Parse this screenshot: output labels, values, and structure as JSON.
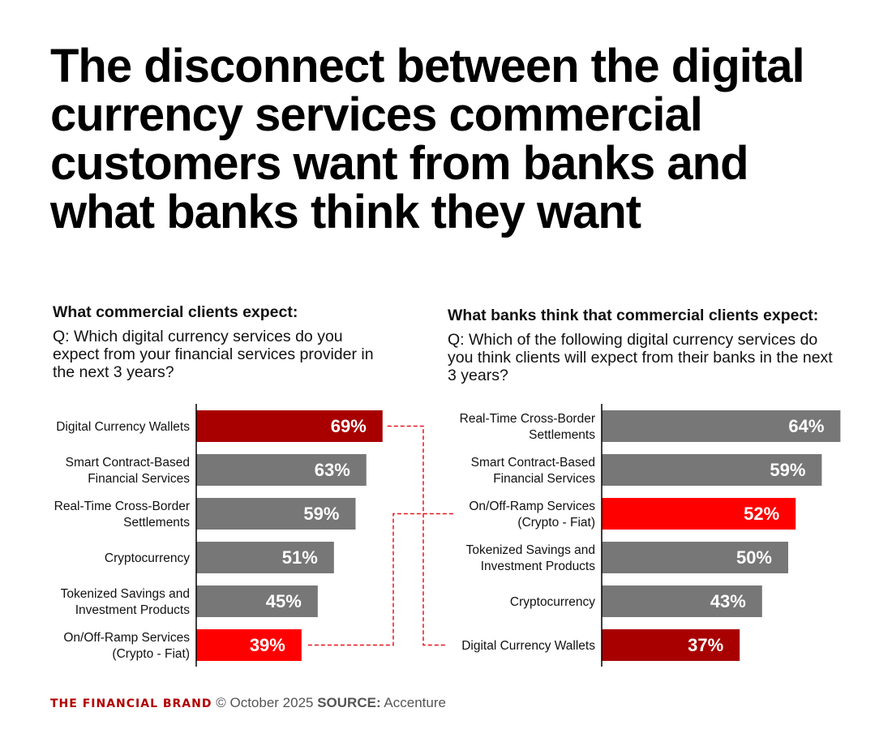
{
  "title": "The disconnect between the digital currency services commercial customers want from banks and what banks think they want",
  "left": {
    "heading": "What commercial clients expect:",
    "question": "Q: Which digital currency services do you expect from your financial services provider in the next 3 years?"
  },
  "right": {
    "heading": "What banks think that commercial clients expect:",
    "question": "Q: Which of the following digital currency services do you think clients will expect from their banks in the next 3 years?"
  },
  "footer": {
    "brand": "THE FINANCIAL BRAND",
    "date": "© October 2025",
    "source_label": "SOURCE:",
    "source": "Accenture"
  },
  "colors": {
    "dark_red": "#a80000",
    "red": "#ff0000",
    "gray": "#777777",
    "connector": "#e8141b"
  },
  "chart_data": [
    {
      "type": "bar",
      "orientation": "horizontal",
      "unit": "%",
      "categories": [
        [
          "Digital Currency Wallets"
        ],
        [
          "Smart Contract-Based",
          "Financial Services"
        ],
        [
          "Real-Time Cross-Border",
          "Settlements"
        ],
        [
          "Cryptocurrency"
        ],
        [
          "Tokenized Savings and",
          "Investment Products"
        ],
        [
          "On/Off-Ramp Services",
          "(Crypto - Fiat)"
        ]
      ],
      "values": [
        69,
        63,
        59,
        51,
        45,
        39
      ],
      "labels": [
        "69%",
        "63%",
        "59%",
        "51%",
        "45%",
        "39%"
      ],
      "bar_colors": [
        "dark_red",
        "gray",
        "gray",
        "gray",
        "gray",
        "red"
      ]
    },
    {
      "type": "bar",
      "orientation": "horizontal",
      "unit": "%",
      "categories": [
        [
          "Real-Time Cross-Border",
          "Settlements"
        ],
        [
          "Smart Contract-Based",
          "Financial Services"
        ],
        [
          "On/Off-Ramp Services",
          "(Crypto - Fiat)"
        ],
        [
          "Tokenized Savings and",
          "Investment Products"
        ],
        [
          "Cryptocurrency"
        ],
        [
          "Digital Currency Wallets"
        ]
      ],
      "values": [
        64,
        59,
        52,
        50,
        43,
        37
      ],
      "labels": [
        "64%",
        "59%",
        "52%",
        "50%",
        "43%",
        "37%"
      ],
      "bar_colors": [
        "gray",
        "gray",
        "red",
        "gray",
        "gray",
        "dark_red"
      ]
    }
  ]
}
